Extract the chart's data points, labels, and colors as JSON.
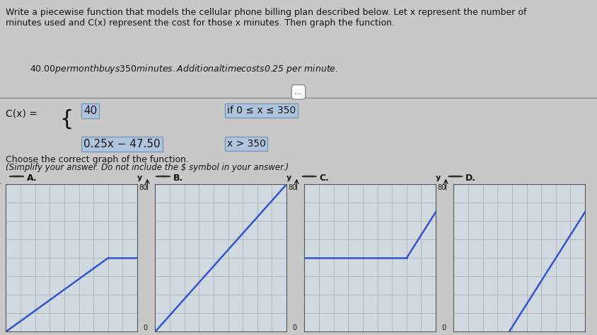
{
  "title_text": "Write a piecewise function that models the cellular phone billing plan described below. Let x represent the number of\nminutes used and C(x) represent the cost for those x minutes. Then graph the function.",
  "subtitle_text": "$40.00 per month buys 350 minutes.  Additional time costs $0.25 per minute.",
  "formula_line1": "40",
  "formula_condition1": "if 0 ≤ x ≤ 350",
  "formula_line2": "0.25x − 47.50",
  "formula_condition2": "x > 350",
  "simplify_note": "(Simplify your answer. Do not include the $ symbol in your answer.)",
  "choose_text": "Choose the correct graph of the function.",
  "options": [
    "A.",
    "B.",
    "C.",
    "D."
  ],
  "xmax": 450,
  "ymax": 80,
  "flat_value": 40,
  "breakpoint": 350,
  "slope": 0.25,
  "intercept": -47.5,
  "bg_color": "#c8c8c8",
  "graph_bg": "#d0d8e0",
  "line_color": "#3355cc",
  "grid_color": "#aaaaaa",
  "text_color": "#111111",
  "radio_color": "#333333"
}
